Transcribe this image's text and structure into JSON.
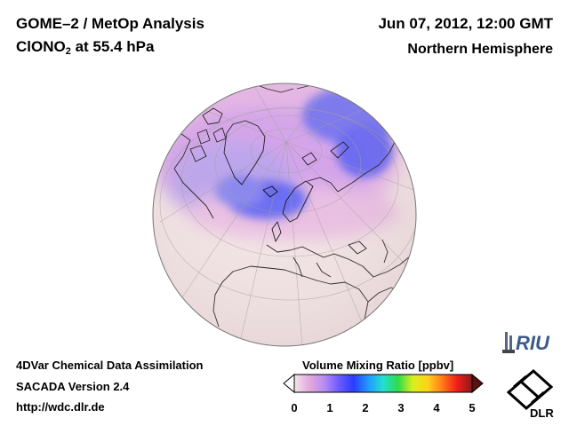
{
  "header": {
    "title_line1": "GOME–2 / MetOp Analysis",
    "species": "ClONO",
    "species_sub": "2",
    "level": " at 55.4 hPa",
    "datetime": "Jun 07, 2012, 12:00 GMT",
    "hemisphere": "Northern Hemisphere"
  },
  "footer": {
    "line1": "4DVar Chemical Data Assimilation",
    "line2": "SACADA Version 2.4",
    "line3": "http://wdc.dlr.de"
  },
  "colorbar": {
    "title": "Volume Mixing Ratio [ppbv]",
    "ticks": [
      "0",
      "1",
      "2",
      "3",
      "4",
      "5"
    ],
    "range": [
      0,
      5
    ],
    "colors": [
      "#f4e4ec",
      "#e3a9dc",
      "#b88cf0",
      "#6b5cff",
      "#2a3cff",
      "#1f9bff",
      "#22e0d0",
      "#2edc4a",
      "#d8f01c",
      "#ffd21a",
      "#ff7a18",
      "#f01c1c",
      "#8b1a1a"
    ]
  },
  "logos": {
    "riu": "RIU",
    "dlr": "DLR"
  },
  "map": {
    "projection": "orthographic",
    "center": "North Pole",
    "background_color": "#f2e4e4"
  }
}
